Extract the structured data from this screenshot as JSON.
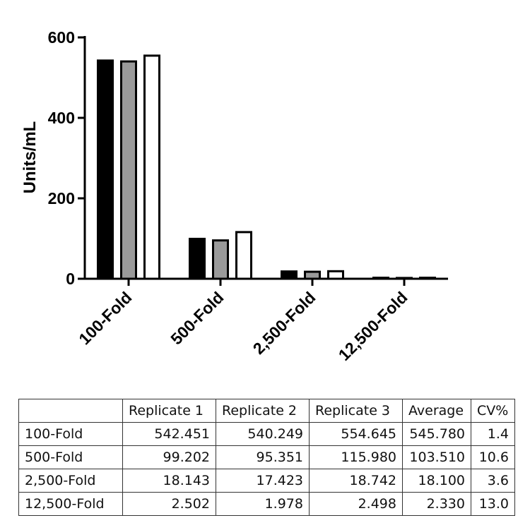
{
  "chart_data": {
    "type": "bar",
    "ylabel": "Units/mL",
    "xlabel": "",
    "ylim": [
      0,
      600
    ],
    "yticks": [
      0,
      200,
      400,
      600
    ],
    "categories": [
      "100-Fold",
      "500-Fold",
      "2,500-Fold",
      "12,500-Fold"
    ],
    "series": [
      {
        "values": [
          542.451,
          99.202,
          18.143,
          2.502
        ],
        "color": "#000000"
      },
      {
        "values": [
          540.249,
          95.351,
          17.423,
          1.978
        ],
        "color": "#9a9a9a"
      },
      {
        "values": [
          554.645,
          115.98,
          18.742,
          2.498
        ],
        "color": "#ffffff"
      }
    ],
    "grid": false,
    "legend": "none"
  },
  "table": {
    "headers": [
      "",
      "Replicate 1",
      "Replicate 2",
      "Replicate 3",
      "Average",
      "CV%"
    ],
    "rows": [
      [
        "100-Fold",
        "542.451",
        "540.249",
        "554.645",
        "545.780",
        "1.4"
      ],
      [
        "500-Fold",
        "99.202",
        "95.351",
        "115.980",
        "103.510",
        "10.6"
      ],
      [
        "2,500-Fold",
        "18.143",
        "17.423",
        "18.742",
        "18.100",
        "3.6"
      ],
      [
        "12,500-Fold",
        "2.502",
        "1.978",
        "2.498",
        "2.330",
        "13.0"
      ]
    ]
  }
}
